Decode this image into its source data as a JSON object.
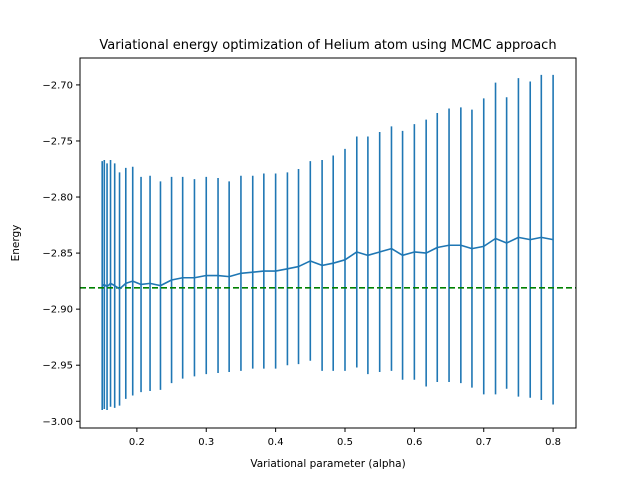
{
  "chart_data": {
    "type": "line",
    "title": "Variational energy optimization of Helium atom using MCMC approach",
    "xlabel": "Variational parameter (alpha)",
    "ylabel": "Energy",
    "xlim": [
      0.118,
      0.833
    ],
    "ylim": [
      -3.006,
      -2.676
    ],
    "xticks": [
      0.2,
      0.3,
      0.4,
      0.5,
      0.6,
      0.7,
      0.8
    ],
    "xtick_labels": [
      "0.2",
      "0.3",
      "0.4",
      "0.5",
      "0.6",
      "0.7",
      "0.8"
    ],
    "yticks": [
      -3.0,
      -2.95,
      -2.9,
      -2.85,
      -2.8,
      -2.75,
      -2.7
    ],
    "ytick_labels": [
      "−3.00",
      "−2.95",
      "−2.90",
      "−2.85",
      "−2.80",
      "−2.75",
      "−2.70"
    ],
    "grid": false,
    "series": [
      {
        "color": "#1f77b4",
        "x": [
          0.15,
          0.153,
          0.157,
          0.162,
          0.168,
          0.175,
          0.184,
          0.194,
          0.206,
          0.219,
          0.234,
          0.25,
          0.266,
          0.283,
          0.3,
          0.317,
          0.333,
          0.35,
          0.367,
          0.383,
          0.4,
          0.417,
          0.433,
          0.45,
          0.467,
          0.483,
          0.5,
          0.517,
          0.533,
          0.55,
          0.567,
          0.583,
          0.6,
          0.617,
          0.633,
          0.65,
          0.667,
          0.683,
          0.7,
          0.717,
          0.733,
          0.75,
          0.767,
          0.783,
          0.8
        ],
        "y": [
          -2.879,
          -2.878,
          -2.88,
          -2.877,
          -2.879,
          -2.882,
          -2.877,
          -2.875,
          -2.878,
          -2.877,
          -2.879,
          -2.874,
          -2.872,
          -2.872,
          -2.87,
          -2.87,
          -2.871,
          -2.868,
          -2.867,
          -2.866,
          -2.866,
          -2.864,
          -2.862,
          -2.857,
          -2.861,
          -2.859,
          -2.856,
          -2.849,
          -2.852,
          -2.849,
          -2.846,
          -2.852,
          -2.849,
          -2.85,
          -2.845,
          -2.843,
          -2.843,
          -2.846,
          -2.844,
          -2.837,
          -2.841,
          -2.836,
          -2.838,
          -2.836,
          -2.838
        ],
        "err_low": [
          -2.99,
          -2.989,
          -2.99,
          -2.987,
          -2.988,
          -2.986,
          -2.98,
          -2.977,
          -2.974,
          -2.973,
          -2.972,
          -2.966,
          -2.962,
          -2.96,
          -2.958,
          -2.957,
          -2.956,
          -2.955,
          -2.953,
          -2.953,
          -2.953,
          -2.95,
          -2.949,
          -2.946,
          -2.955,
          -2.955,
          -2.955,
          -2.952,
          -2.958,
          -2.956,
          -2.955,
          -2.963,
          -2.963,
          -2.969,
          -2.965,
          -2.965,
          -2.966,
          -2.97,
          -2.976,
          -2.976,
          -2.971,
          -2.978,
          -2.979,
          -2.981,
          -2.985
        ]
      }
    ],
    "reference_line": {
      "y": -2.881,
      "color": "#008000",
      "style": "dashed"
    }
  }
}
